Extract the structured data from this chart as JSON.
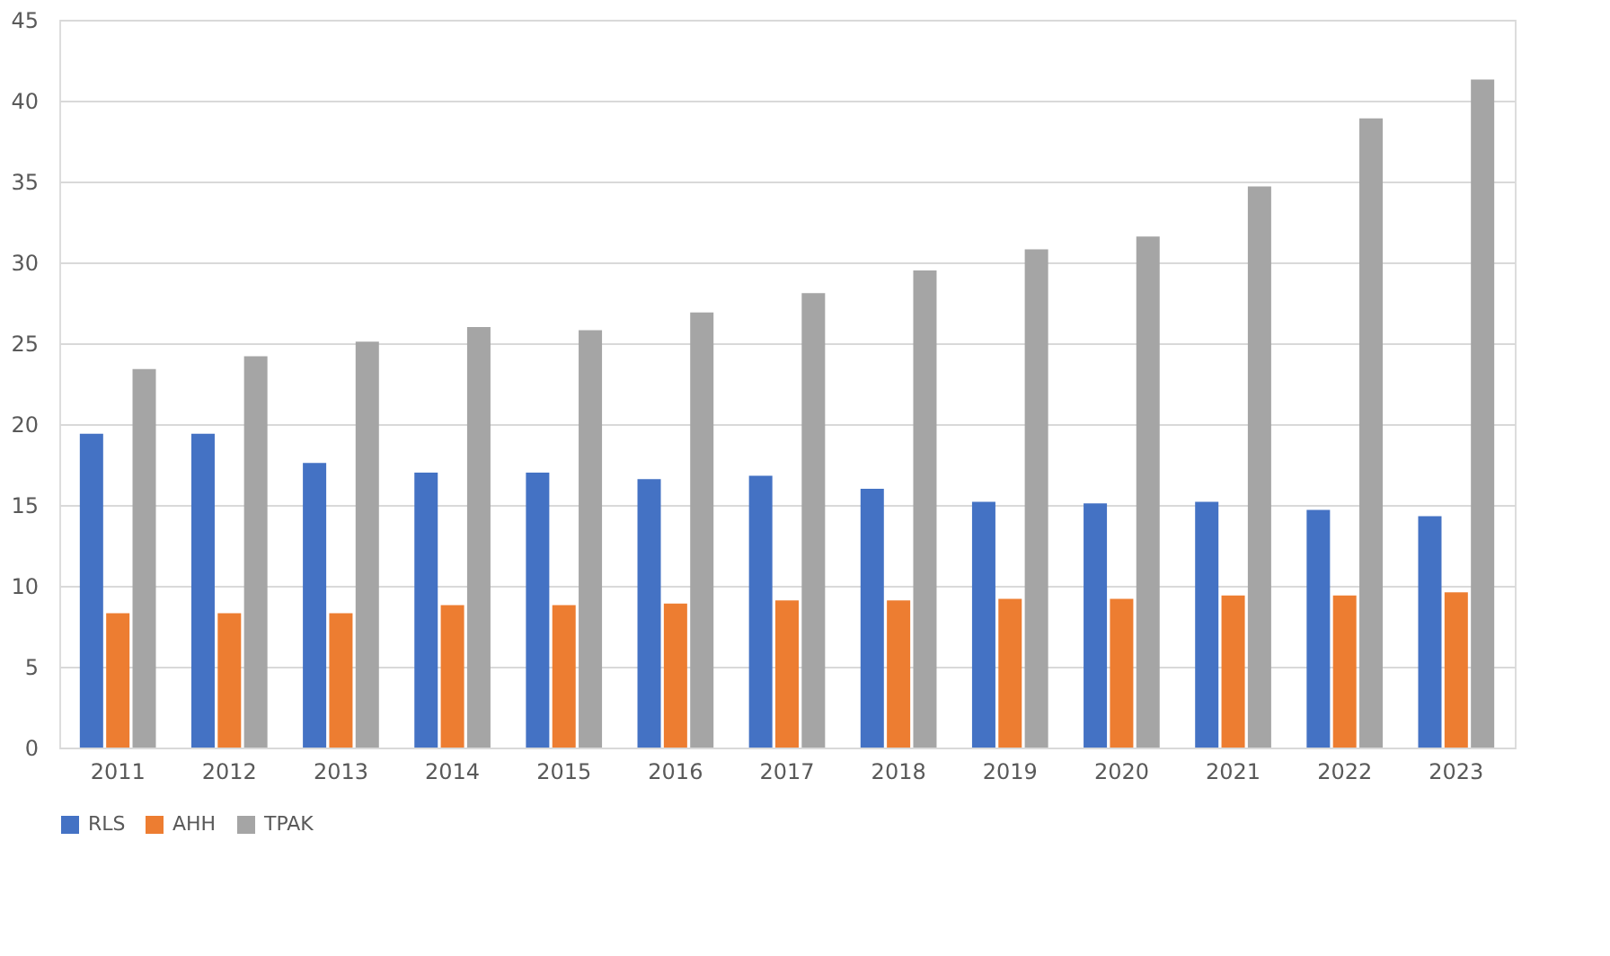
{
  "chart_data": {
    "type": "bar",
    "categories": [
      "2011",
      "2012",
      "2013",
      "2014",
      "2015",
      "2016",
      "2017",
      "2018",
      "2019",
      "2020",
      "2021",
      "2022",
      "2023"
    ],
    "series": [
      {
        "name": "RLS",
        "color": "#4472c4",
        "values": [
          19.4,
          19.4,
          17.6,
          17.0,
          17.0,
          16.6,
          16.8,
          16.0,
          15.2,
          15.1,
          15.2,
          14.7,
          14.3
        ]
      },
      {
        "name": "AHH",
        "color": "#ed7d31",
        "values": [
          8.3,
          8.3,
          8.3,
          8.8,
          8.8,
          8.9,
          9.1,
          9.1,
          9.2,
          9.2,
          9.4,
          9.4,
          9.6
        ]
      },
      {
        "name": "TPAK",
        "color": "#a5a5a5",
        "values": [
          23.4,
          24.2,
          25.1,
          26.0,
          25.8,
          26.9,
          28.1,
          29.5,
          30.8,
          31.6,
          34.7,
          38.9,
          41.3
        ]
      }
    ],
    "ylim": [
      0,
      45
    ],
    "yticks": [
      0,
      5,
      10,
      15,
      20,
      25,
      30,
      35,
      40,
      45
    ],
    "grid": "y",
    "legend": "bottom"
  }
}
